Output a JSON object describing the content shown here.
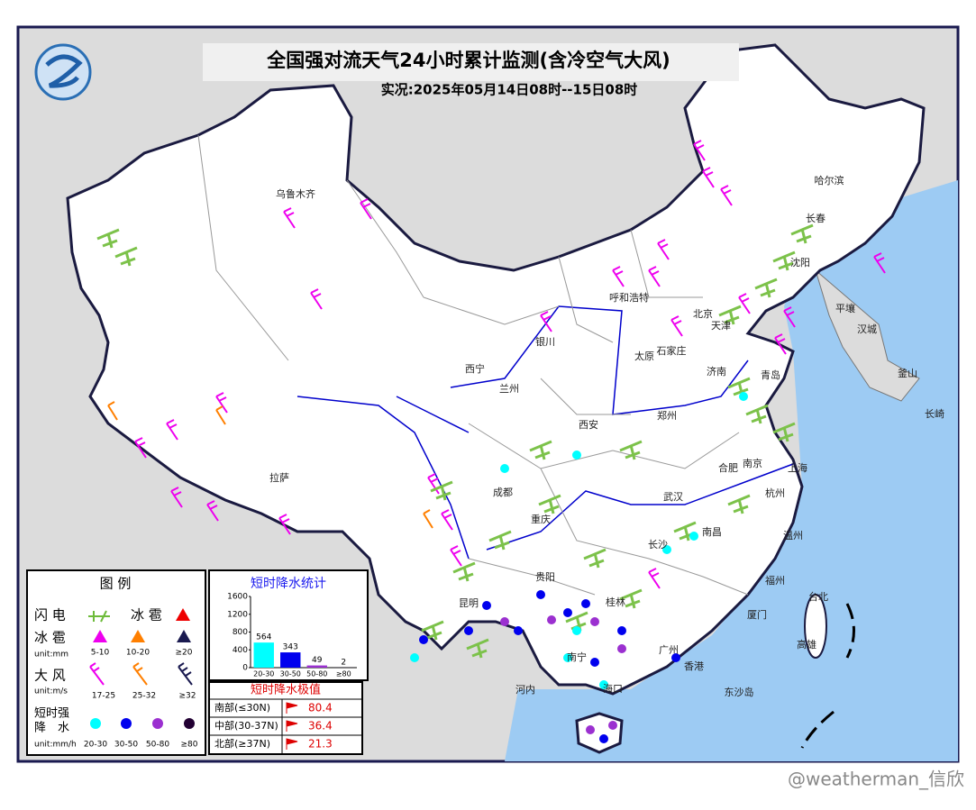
{
  "header": {
    "title": "全国强对流天气24小时累计监测(含冷空气大风)",
    "subtitle": "实况:2025年05月14日08时--15日08时"
  },
  "cities": [
    "乌鲁木齐",
    "哈尔滨",
    "长春",
    "沈阳",
    "呼和浩特",
    "北京",
    "天津",
    "石家庄",
    "太原",
    "济南",
    "青岛",
    "银川",
    "西宁",
    "兰州",
    "郑州",
    "西安",
    "合肥",
    "南京",
    "上海",
    "成都",
    "拉萨",
    "重庆",
    "武汉",
    "长沙",
    "南昌",
    "杭州",
    "温州",
    "贵阳",
    "福州",
    "厦门",
    "台北",
    "昆明",
    "桂林",
    "南宁",
    "广州",
    "香港",
    "海口",
    "高雄",
    "平壤",
    "汉城",
    "釜山",
    "长崎",
    "河内",
    "东沙岛"
  ],
  "legend": {
    "title": "图 例",
    "lightning": "闪 电",
    "hail": "冰 雹",
    "hail_size": "冰 雹",
    "hail_unit": "unit:mm",
    "hail_bins": [
      "5-10",
      "10-20",
      "≥20"
    ],
    "wind": "大 风",
    "wind_unit": "unit:m/s",
    "wind_bins": [
      "17-25",
      "25-32",
      "≥32"
    ],
    "rain_line1": "短时强",
    "rain_line2": "降　水",
    "rain_unit": "unit:mm/h",
    "rain_bins": [
      "20-30",
      "30-50",
      "50-80",
      "≥80"
    ]
  },
  "chart_data": {
    "type": "bar",
    "title": "短时降水统计",
    "categories": [
      "20-30",
      "30-50",
      "50-80",
      "≥80"
    ],
    "values": [
      564,
      343,
      49,
      2
    ],
    "colors": [
      "#00ffff",
      "#0000ee",
      "#9b30d0",
      "#220033"
    ],
    "ylim": [
      0,
      1600
    ],
    "yticks": [
      0,
      400,
      800,
      1200,
      1600
    ]
  },
  "extremes": {
    "title": "短时降水极值",
    "rows": [
      [
        "南部(≤30N)",
        "80.4"
      ],
      [
        "中部(30-37N)",
        "36.4"
      ],
      [
        "北部(≥37N)",
        "21.3"
      ]
    ]
  },
  "watermark": "@weatherman_信欣"
}
